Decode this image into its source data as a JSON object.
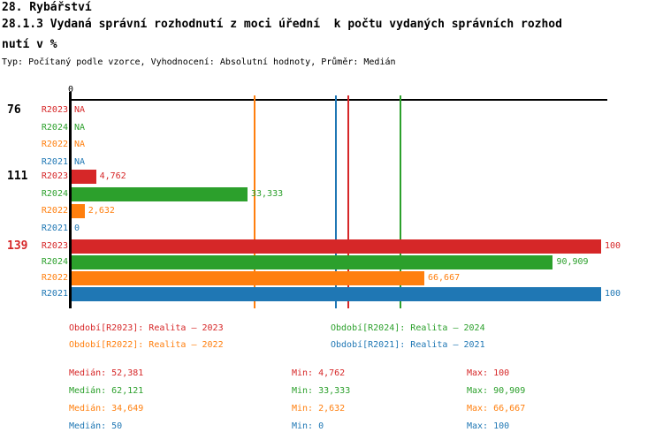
{
  "header": {
    "title_lines": [
      "28. Rybářství",
      "28.1.3 Vydaná správní rozhodnutí z moci úřední  k počtu vydaných správních rozhod",
      "nutí v %"
    ],
    "meta": "Typ: Počítaný podle vzorce, Vyhodnocení: Absolutní hodnoty, Průměr: Medián"
  },
  "colors": {
    "R2023": "#d62728",
    "R2024": "#2ca02c",
    "R2022": "#ff7f0e",
    "R2021": "#1f77b4",
    "axis": "#000000",
    "highlight_category": "#d62728"
  },
  "chart_data": {
    "type": "bar",
    "orientation": "horizontal",
    "title": "28.1.3 Vydaná správní rozhodnutí z moci úřední k počtu vydaných správních rozhodnutí v %",
    "axis": {
      "tick_label": "0",
      "min": 0,
      "max": 100,
      "grid": false
    },
    "series_order": [
      "R2023",
      "R2024",
      "R2022",
      "R2021"
    ],
    "groups": [
      {
        "category": "76",
        "highlight": false,
        "rows": [
          {
            "series": "R2023",
            "value": null,
            "display": "NA"
          },
          {
            "series": "R2024",
            "value": null,
            "display": "NA"
          },
          {
            "series": "R2022",
            "value": null,
            "display": "NA"
          },
          {
            "series": "R2021",
            "value": null,
            "display": "NA"
          }
        ]
      },
      {
        "category": "111",
        "highlight": false,
        "rows": [
          {
            "series": "R2023",
            "value": 4.762,
            "display": "4,762"
          },
          {
            "series": "R2024",
            "value": 33.333,
            "display": "33,333"
          },
          {
            "series": "R2022",
            "value": 2.632,
            "display": "2,632"
          },
          {
            "series": "R2021",
            "value": 0,
            "display": "0"
          }
        ]
      },
      {
        "category": "139",
        "highlight": true,
        "rows": [
          {
            "series": "R2023",
            "value": 100,
            "display": "100"
          },
          {
            "series": "R2024",
            "value": 90.909,
            "display": "90,909"
          },
          {
            "series": "R2022",
            "value": 66.667,
            "display": "66,667"
          },
          {
            "series": "R2021",
            "value": 100,
            "display": "100"
          }
        ]
      }
    ],
    "legend": [
      {
        "series": "R2023",
        "label": "Období[R2023]: Realita – 2023"
      },
      {
        "series": "R2024",
        "label": "Období[R2024]: Realita – 2024"
      },
      {
        "series": "R2022",
        "label": "Období[R2022]: Realita – 2022"
      },
      {
        "series": "R2021",
        "label": "Období[R2021]: Realita – 2021"
      }
    ],
    "stats": [
      {
        "series": "R2023",
        "median_value": 52.381,
        "median": "Medián: 52,381",
        "min": "Min: 4,762",
        "max": "Max: 100"
      },
      {
        "series": "R2024",
        "median_value": 62.121,
        "median": "Medián: 62,121",
        "min": "Min: 33,333",
        "max": "Max: 90,909"
      },
      {
        "series": "R2022",
        "median_value": 34.649,
        "median": "Medián: 34,649",
        "min": "Min: 2,632",
        "max": "Max: 66,667"
      },
      {
        "series": "R2021",
        "median_value": 50,
        "median": "Medián: 50",
        "min": "Min: 0",
        "max": "Max: 100"
      }
    ]
  }
}
